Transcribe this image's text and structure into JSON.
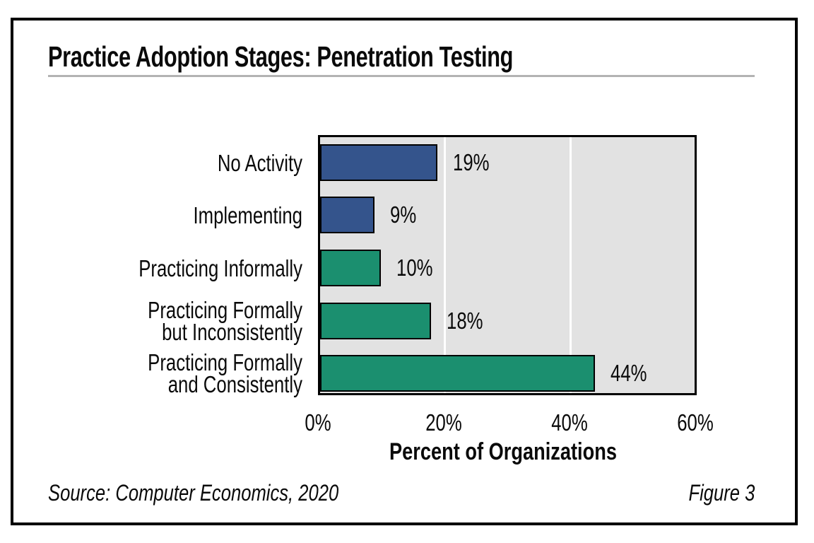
{
  "figure": {
    "title": "Practice Adoption Stages: Penetration Testing",
    "source_note": "Source: Computer Economics, 2020",
    "figure_label": "Figure 3"
  },
  "chart_data": {
    "type": "bar",
    "orientation": "horizontal",
    "title": "Practice Adoption Stages: Penetration Testing",
    "xlabel": "Percent of Organizations",
    "ylabel": "",
    "xlim": [
      0,
      60
    ],
    "x_ticks": [
      {
        "value": 0,
        "label": "0%"
      },
      {
        "value": 20,
        "label": "20%"
      },
      {
        "value": 40,
        "label": "40%"
      },
      {
        "value": 60,
        "label": "60%"
      }
    ],
    "grid": "vertical gridlines at 20 and 40, white, drawn behind bars",
    "gridline_values": [
      20,
      40
    ],
    "gridline_color": "#ffffff",
    "plot_background": "#e2e2e2",
    "bar_outline_color": "#000000",
    "categories": [
      "No Activity",
      "Implementing",
      "Practicing Informally",
      "Practicing Formally but Inconsistently",
      "Practicing Formally and Consistently"
    ],
    "category_label_lines": [
      [
        "No Activity"
      ],
      [
        "Implementing"
      ],
      [
        "Practicing Informally"
      ],
      [
        "Practicing Formally",
        "but Inconsistently"
      ],
      [
        "Practicing Formally",
        "and Consistently"
      ]
    ],
    "values": [
      19,
      9,
      10,
      18,
      44
    ],
    "value_labels": [
      "19%",
      "9%",
      "10%",
      "18%",
      "44%"
    ],
    "bar_colors": [
      "#34548c",
      "#34548c",
      "#1b8f6f",
      "#1b8f6f",
      "#1b8f6f"
    ],
    "legend": "none"
  }
}
